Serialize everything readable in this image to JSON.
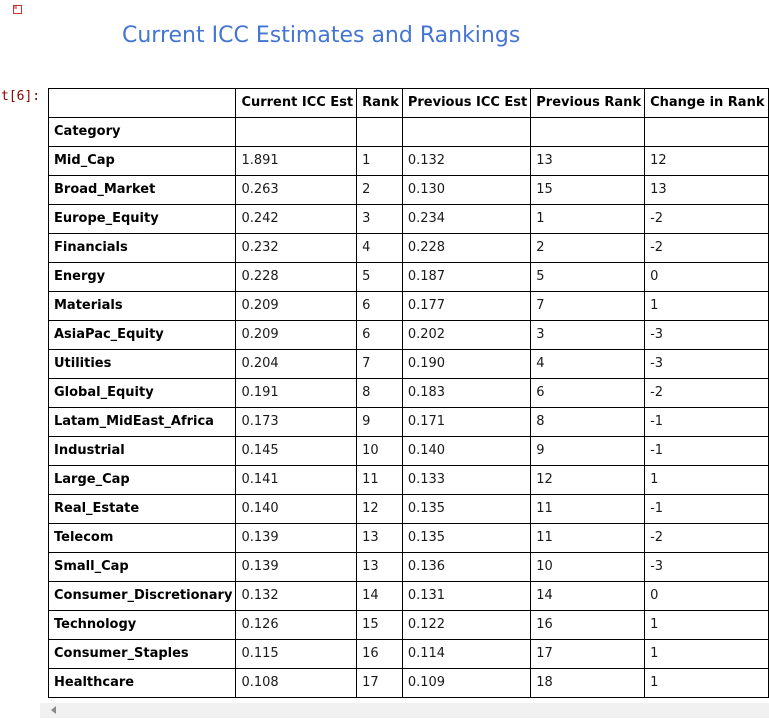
{
  "notebook": {
    "out_prompt": "t[6]:",
    "title": "Current ICC Estimates and Rankings"
  },
  "colors": {
    "title_blue": "#4575d4",
    "prompt_maroon": "#8b0000",
    "table_border": "#000000",
    "scrollbar_track": "#f1f1f1",
    "broken_image_red": "#cc3333"
  },
  "icons": {
    "broken_image": "broken-image-placeholder",
    "scrollbar_left_arrow": "left-triangle"
  },
  "table": {
    "index_name": "Category",
    "columns": [
      "Current ICC Est",
      "Rank",
      "Previous ICC Est",
      "Previous Rank",
      "Change in Rank"
    ],
    "rows": [
      {
        "category": "Mid_Cap",
        "values": [
          "1.891",
          "1",
          "0.132",
          "13",
          "12"
        ]
      },
      {
        "category": "Broad_Market",
        "values": [
          "0.263",
          "2",
          "0.130",
          "15",
          "13"
        ]
      },
      {
        "category": "Europe_Equity",
        "values": [
          "0.242",
          "3",
          "0.234",
          "1",
          "-2"
        ]
      },
      {
        "category": "Financials",
        "values": [
          "0.232",
          "4",
          "0.228",
          "2",
          "-2"
        ]
      },
      {
        "category": "Energy",
        "values": [
          "0.228",
          "5",
          "0.187",
          "5",
          "0"
        ]
      },
      {
        "category": "Materials",
        "values": [
          "0.209",
          "6",
          "0.177",
          "7",
          "1"
        ]
      },
      {
        "category": "AsiaPac_Equity",
        "values": [
          "0.209",
          "6",
          "0.202",
          "3",
          "-3"
        ]
      },
      {
        "category": "Utilities",
        "values": [
          "0.204",
          "7",
          "0.190",
          "4",
          "-3"
        ]
      },
      {
        "category": "Global_Equity",
        "values": [
          "0.191",
          "8",
          "0.183",
          "6",
          "-2"
        ]
      },
      {
        "category": "Latam_MidEast_Africa",
        "values": [
          "0.173",
          "9",
          "0.171",
          "8",
          "-1"
        ]
      },
      {
        "category": "Industrial",
        "values": [
          "0.145",
          "10",
          "0.140",
          "9",
          "-1"
        ]
      },
      {
        "category": "Large_Cap",
        "values": [
          "0.141",
          "11",
          "0.133",
          "12",
          "1"
        ]
      },
      {
        "category": "Real_Estate",
        "values": [
          "0.140",
          "12",
          "0.135",
          "11",
          "-1"
        ]
      },
      {
        "category": "Telecom",
        "values": [
          "0.139",
          "13",
          "0.135",
          "11",
          "-2"
        ]
      },
      {
        "category": "Small_Cap",
        "values": [
          "0.139",
          "13",
          "0.136",
          "10",
          "-3"
        ]
      },
      {
        "category": "Consumer_Discretionary",
        "values": [
          "0.132",
          "14",
          "0.131",
          "14",
          "0"
        ]
      },
      {
        "category": "Technology",
        "values": [
          "0.126",
          "15",
          "0.122",
          "16",
          "1"
        ]
      },
      {
        "category": "Consumer_Staples",
        "values": [
          "0.115",
          "16",
          "0.114",
          "17",
          "1"
        ]
      },
      {
        "category": "Healthcare",
        "values": [
          "0.108",
          "17",
          "0.109",
          "18",
          "1"
        ]
      }
    ]
  }
}
